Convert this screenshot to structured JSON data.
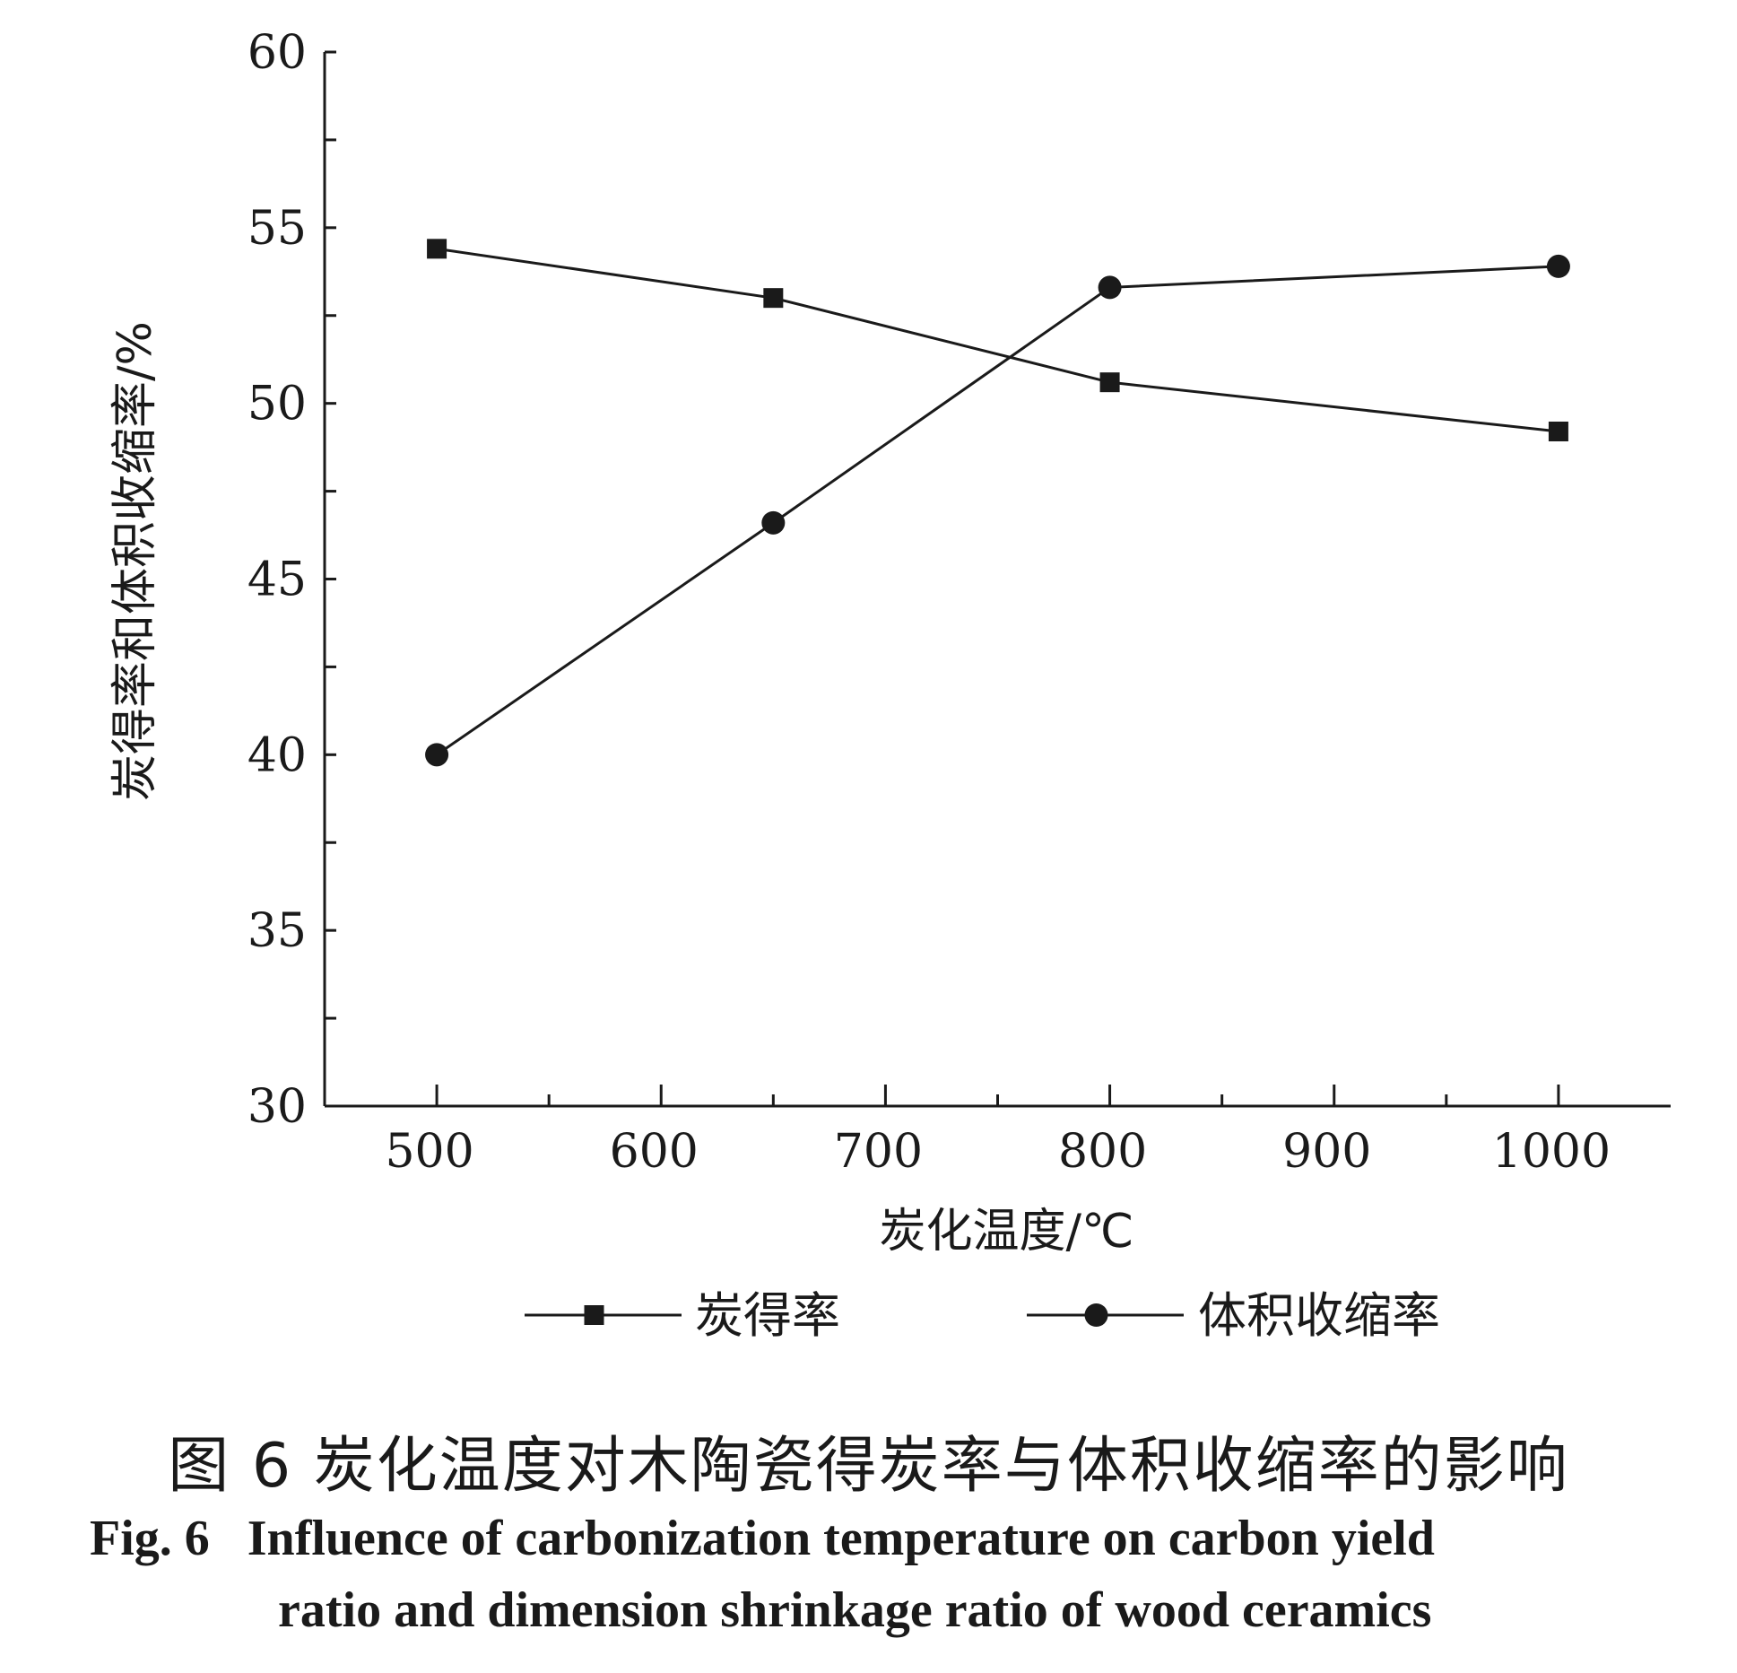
{
  "chart_data": {
    "type": "line",
    "xlabel": "炭化温度/℃",
    "ylabel": "炭得率和体积收缩率/%",
    "xlim": [
      450,
      1050
    ],
    "ylim": [
      30,
      60
    ],
    "x_ticks": [
      500,
      600,
      700,
      800,
      900,
      1000
    ],
    "y_ticks": [
      30,
      35,
      40,
      45,
      50,
      55,
      60
    ],
    "grid": false,
    "legend_position": "bottom",
    "series": [
      {
        "name": "炭得率",
        "marker": "square",
        "x": [
          500,
          650,
          800,
          1000
        ],
        "values": [
          54.4,
          53.0,
          50.6,
          49.2
        ]
      },
      {
        "name": "体积收缩率",
        "marker": "circle",
        "x": [
          500,
          650,
          800,
          1000
        ],
        "values": [
          40.0,
          46.6,
          53.3,
          53.9
        ]
      }
    ]
  },
  "caption": {
    "cn": "图 6   炭化温度对木陶瓷得炭率与体积收缩率的影响",
    "en_line1": "Fig. 6   Influence of carbonization temperature on carbon yield",
    "en_line2": "ratio and dimension shrinkage ratio of wood ceramics"
  },
  "colors": {
    "ink": "#1a1a1a",
    "background": "#ffffff"
  }
}
